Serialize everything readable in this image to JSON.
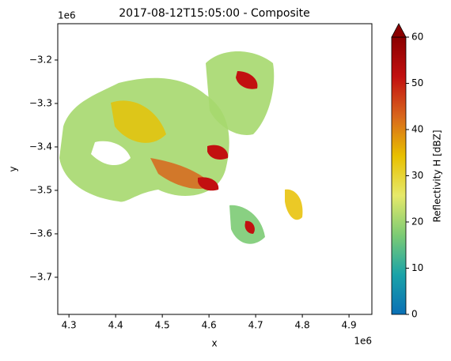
{
  "chart_data": {
    "type": "heatmap",
    "title": "2017-08-12T15:05:00 - Composite",
    "x_label": "x",
    "y_label": "y",
    "x_offset_label": "1e6",
    "y_offset_label": "1e6",
    "xlim": [
      4.276,
      4.949
    ],
    "xticks": [
      4.3,
      4.4,
      4.5,
      4.6,
      4.7,
      4.8,
      4.9
    ],
    "ylim": [
      -3.7855,
      -3.1164
    ],
    "yticks": [
      {
        "value": -3.2,
        "label": "−3.2"
      },
      {
        "value": -3.3,
        "label": "−3.3"
      },
      {
        "value": -3.4,
        "label": "−3.4"
      },
      {
        "value": -3.5,
        "label": "−3.5"
      },
      {
        "value": -3.6,
        "label": "−3.6"
      },
      {
        "value": -3.7,
        "label": "−3.7"
      }
    ],
    "colorbar": {
      "label": "Reflectivity H [dBZ]",
      "lim": [
        0,
        60
      ],
      "ticks": [
        0,
        10,
        20,
        30,
        40,
        50,
        60
      ],
      "extend": "max",
      "colors": [
        "#0a6fb5",
        "#1aa3a8",
        "#7ccb74",
        "#e6e96a",
        "#e8c000",
        "#d8661c",
        "#c21010",
        "#8a0000"
      ]
    }
  }
}
